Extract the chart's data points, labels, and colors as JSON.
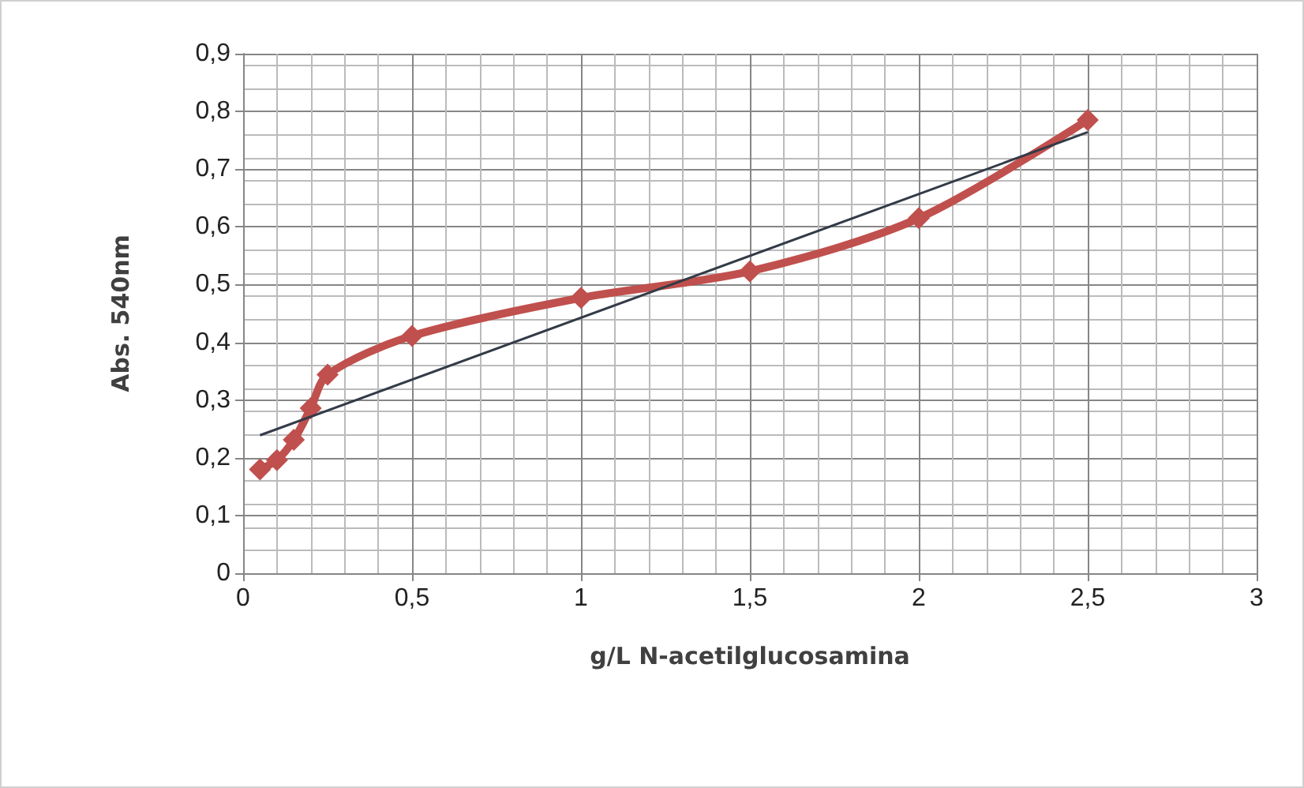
{
  "chart_data": {
    "type": "line",
    "xlabel": "g/L N-acetilglucosamina",
    "ylabel": "Abs. 540nm",
    "xlim": [
      0,
      3
    ],
    "xticks": [
      {
        "value": 0,
        "label": "0"
      },
      {
        "value": 0.5,
        "label": "0,5"
      },
      {
        "value": 1,
        "label": "1"
      },
      {
        "value": 1.5,
        "label": "1,5"
      },
      {
        "value": 2,
        "label": "2"
      },
      {
        "value": 2.5,
        "label": "2,5"
      },
      {
        "value": 3,
        "label": "3"
      }
    ],
    "ylim": [
      0,
      0.9
    ],
    "yticks": [
      {
        "value": 0,
        "label": "0"
      },
      {
        "value": 0.1,
        "label": "0,1"
      },
      {
        "value": 0.2,
        "label": "0,2"
      },
      {
        "value": 0.3,
        "label": "0,3"
      },
      {
        "value": 0.4,
        "label": "0,4"
      },
      {
        "value": 0.5,
        "label": "0,5"
      },
      {
        "value": 0.6,
        "label": "0,6"
      },
      {
        "value": 0.7,
        "label": "0,7"
      },
      {
        "value": 0.8,
        "label": "0,8"
      },
      {
        "value": 0.9,
        "label": "0,9"
      }
    ],
    "grid": true,
    "series": [
      {
        "color": "#c0504d",
        "marker": "diamond",
        "x": [
          0.05,
          0.1,
          0.15,
          0.2,
          0.25,
          0.5,
          1,
          1.5,
          2,
          2.5
        ],
        "values": [
          0.18,
          0.196,
          0.231,
          0.286,
          0.344,
          0.411,
          0.477,
          0.523,
          0.615,
          0.785
        ]
      },
      {
        "color": "#333b47",
        "marker": "none",
        "x": [
          0.05,
          2.5
        ],
        "values": [
          0.239,
          0.764
        ]
      }
    ]
  }
}
